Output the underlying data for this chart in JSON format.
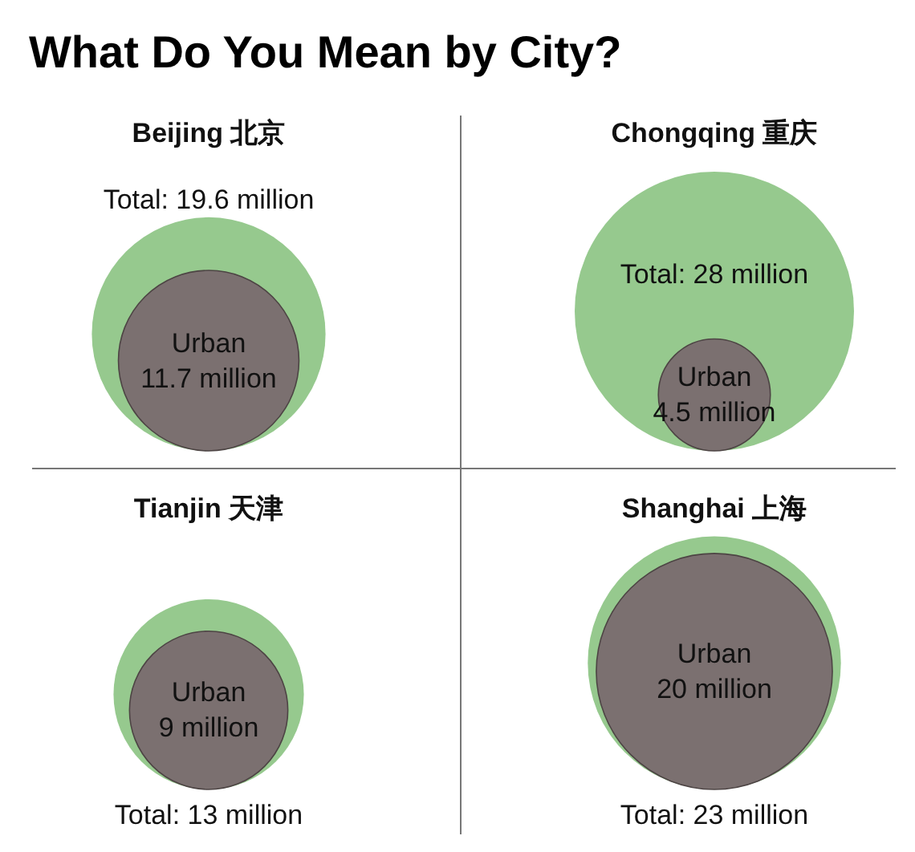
{
  "chart_data": [
    {
      "type": "other",
      "title": "What Do You Mean by City?"
    },
    {
      "type": "other",
      "categories": [
        "Beijing 北京"
      ],
      "series": [
        {
          "color": "#96c98e",
          "values": [
            19.6
          ],
          "value_labels": [
            "Total: 19.6 million"
          ]
        },
        {
          "name": "Urban",
          "color": "#7b7070",
          "values": [
            11.7
          ],
          "value_labels": [
            "11.7 million"
          ]
        }
      ]
    },
    {
      "type": "other",
      "categories": [
        "Chongqing 重庆"
      ],
      "series": [
        {
          "color": "#96c98e",
          "values": [
            28
          ],
          "value_labels": [
            "Total: 28 million"
          ]
        },
        {
          "name": "Urban",
          "color": "#7b7070",
          "values": [
            4.5
          ],
          "value_labels": [
            "4.5 million"
          ]
        }
      ]
    },
    {
      "type": "other",
      "categories": [
        "Tianjin 天津"
      ],
      "series": [
        {
          "color": "#96c98e",
          "values": [
            13
          ],
          "value_labels": [
            "Total: 13 million"
          ]
        },
        {
          "name": "Urban",
          "color": "#7b7070",
          "values": [
            9
          ],
          "value_labels": [
            "9 million"
          ]
        }
      ]
    },
    {
      "type": "other",
      "categories": [
        "Shanghai 上海"
      ],
      "series": [
        {
          "color": "#96c98e",
          "values": [
            23
          ],
          "value_labels": [
            "Total: 23 million"
          ]
        },
        {
          "name": "Urban",
          "color": "#7b7070",
          "values": [
            20
          ],
          "value_labels": [
            "20 million"
          ]
        }
      ]
    }
  ]
}
